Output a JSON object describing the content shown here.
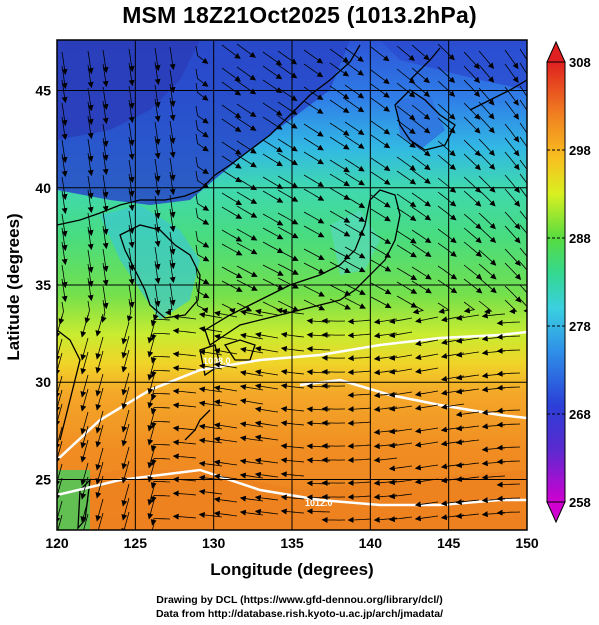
{
  "title": "MSM 18Z21Oct2025 (1013.2hPa)",
  "map": {
    "xlabel": "Longitude (degrees)",
    "ylabel": "Latitude  (degrees)",
    "x_ticks": [
      "120",
      "125",
      "130",
      "135",
      "140",
      "145",
      "150"
    ],
    "y_ticks": [
      "25",
      "30",
      "35",
      "40",
      "45"
    ],
    "lon_range": [
      120,
      150
    ],
    "lat_range": [
      22.4,
      47.6
    ],
    "field": "temperature (K) at 1013.2 hPa with wind streamlines",
    "isobar_labels": [
      "1008.0",
      "1012.0"
    ]
  },
  "colorbar": {
    "tick_labels": [
      "308",
      "298",
      "288",
      "278",
      "268",
      "258"
    ],
    "range": [
      258,
      308
    ],
    "colors": [
      "#cc00cc",
      "#3030d0",
      "#2f6fe0",
      "#3fc0e8",
      "#30d890",
      "#60e040",
      "#d8f020",
      "#f8c020",
      "#f08020",
      "#e03020",
      "#e02020"
    ]
  },
  "credits": {
    "line1": "Drawing by DCL (https://www.gfd-dennou.org/library/dcl/)",
    "line2": "Data from http://database.rish.kyoto-u.ac.jp/arch/jmadata/"
  }
}
